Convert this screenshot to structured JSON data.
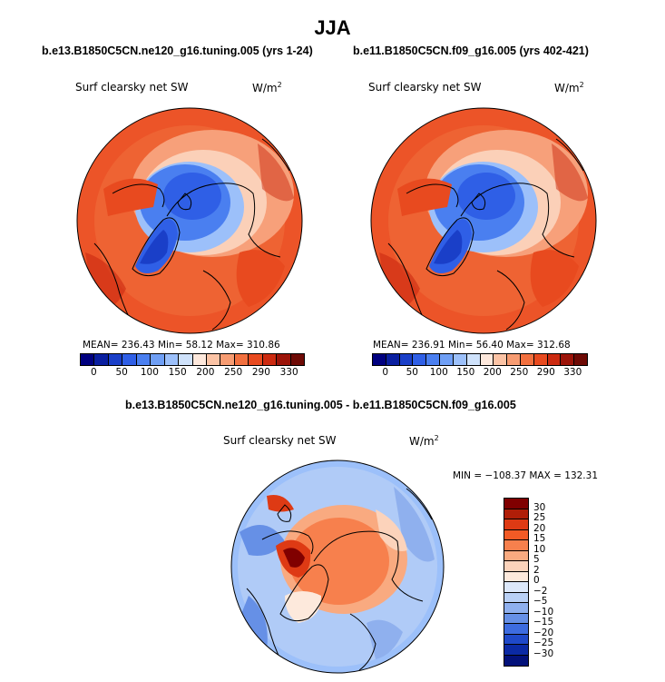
{
  "title": "JJA",
  "panels": [
    {
      "subtitle": "b.e13.B1850C5CN.ne120_g16.tuning.005 (yrs 1-24)",
      "variable": "Surf clearsky net SW",
      "units": "W/m",
      "units_sup": "2",
      "stats": "MEAN= 236.43   Min=  58.12   Max= 310.86",
      "colorbar_ticks": [
        "0",
        "50",
        "100",
        "150",
        "200",
        "250",
        "290",
        "330"
      ]
    },
    {
      "subtitle": "b.e11.B1850C5CN.f09_g16.005 (yrs 402-421)",
      "variable": "Surf clearsky net SW",
      "units": "W/m",
      "units_sup": "2",
      "stats": "MEAN= 236.91   Min=  56.40   Max= 312.68",
      "colorbar_ticks": [
        "0",
        "50",
        "100",
        "150",
        "200",
        "250",
        "290",
        "330"
      ]
    }
  ],
  "diff_panel": {
    "subtitle": "b.e13.B1850C5CN.ne120_g16.tuning.005 - b.e11.B1850C5CN.f09_g16.005",
    "variable": "Surf clearsky net SW",
    "units": "W/m",
    "units_sup": "2",
    "stats": "MIN = −108.37  MAX = 132.31",
    "colorbar_ticks": [
      "30",
      "25",
      "20",
      "15",
      "10",
      "5",
      "2",
      "0",
      "−2",
      "−5",
      "−10",
      "−15",
      "−20",
      "−25",
      "−30"
    ]
  },
  "colors": {
    "abs_scale": [
      "#00007f",
      "#0a1fa0",
      "#1a3fc8",
      "#2f5fe6",
      "#4a7ff0",
      "#6f9ff5",
      "#9cc0fa",
      "#cfe2fb",
      "#fde8dc",
      "#fbc3a5",
      "#f79c72",
      "#f2703f",
      "#e84a1f",
      "#cc2a10",
      "#9c1409",
      "#6e0a05"
    ],
    "diff_scale": [
      "#800000",
      "#b01e08",
      "#de3a14",
      "#f25a25",
      "#f7804d",
      "#f9aa80",
      "#fcd3bb",
      "#fde9dc",
      "#dce8fa",
      "#b9d0f5",
      "#8fb0ee",
      "#6690e6",
      "#3d6ce0",
      "#1f49c9",
      "#0b2aa5",
      "#03117a"
    ]
  }
}
